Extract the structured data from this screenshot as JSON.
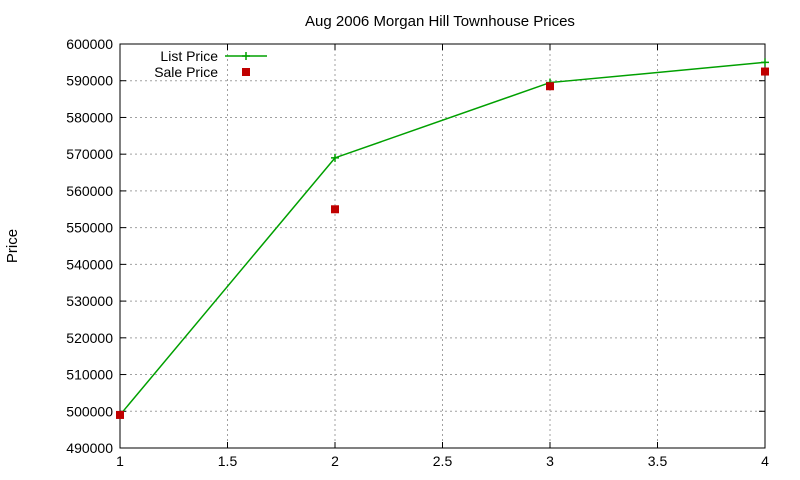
{
  "chart_data": {
    "type": "line",
    "title": "Aug 2006 Morgan Hill Townhouse Prices",
    "xlabel": "",
    "ylabel": "Price",
    "xlim": [
      1,
      4
    ],
    "ylim": [
      490000,
      600000
    ],
    "x_ticks": [
      "1",
      "1.5",
      "2",
      "2.5",
      "3",
      "3.5",
      "4"
    ],
    "y_ticks": [
      "490000",
      "500000",
      "510000",
      "520000",
      "530000",
      "540000",
      "550000",
      "560000",
      "570000",
      "580000",
      "590000",
      "600000"
    ],
    "grid": true,
    "legend_position": "top-left",
    "series": [
      {
        "name": "List Price",
        "style": "linespoints",
        "marker": "plus",
        "color": "#00a000",
        "x": [
          1,
          2,
          3,
          4
        ],
        "values": [
          499000,
          569000,
          589500,
          595000
        ]
      },
      {
        "name": "Sale Price",
        "style": "points",
        "marker": "square",
        "color": "#c00000",
        "x": [
          1,
          2,
          3,
          4
        ],
        "values": [
          499000,
          555000,
          588500,
          592500
        ]
      }
    ]
  }
}
